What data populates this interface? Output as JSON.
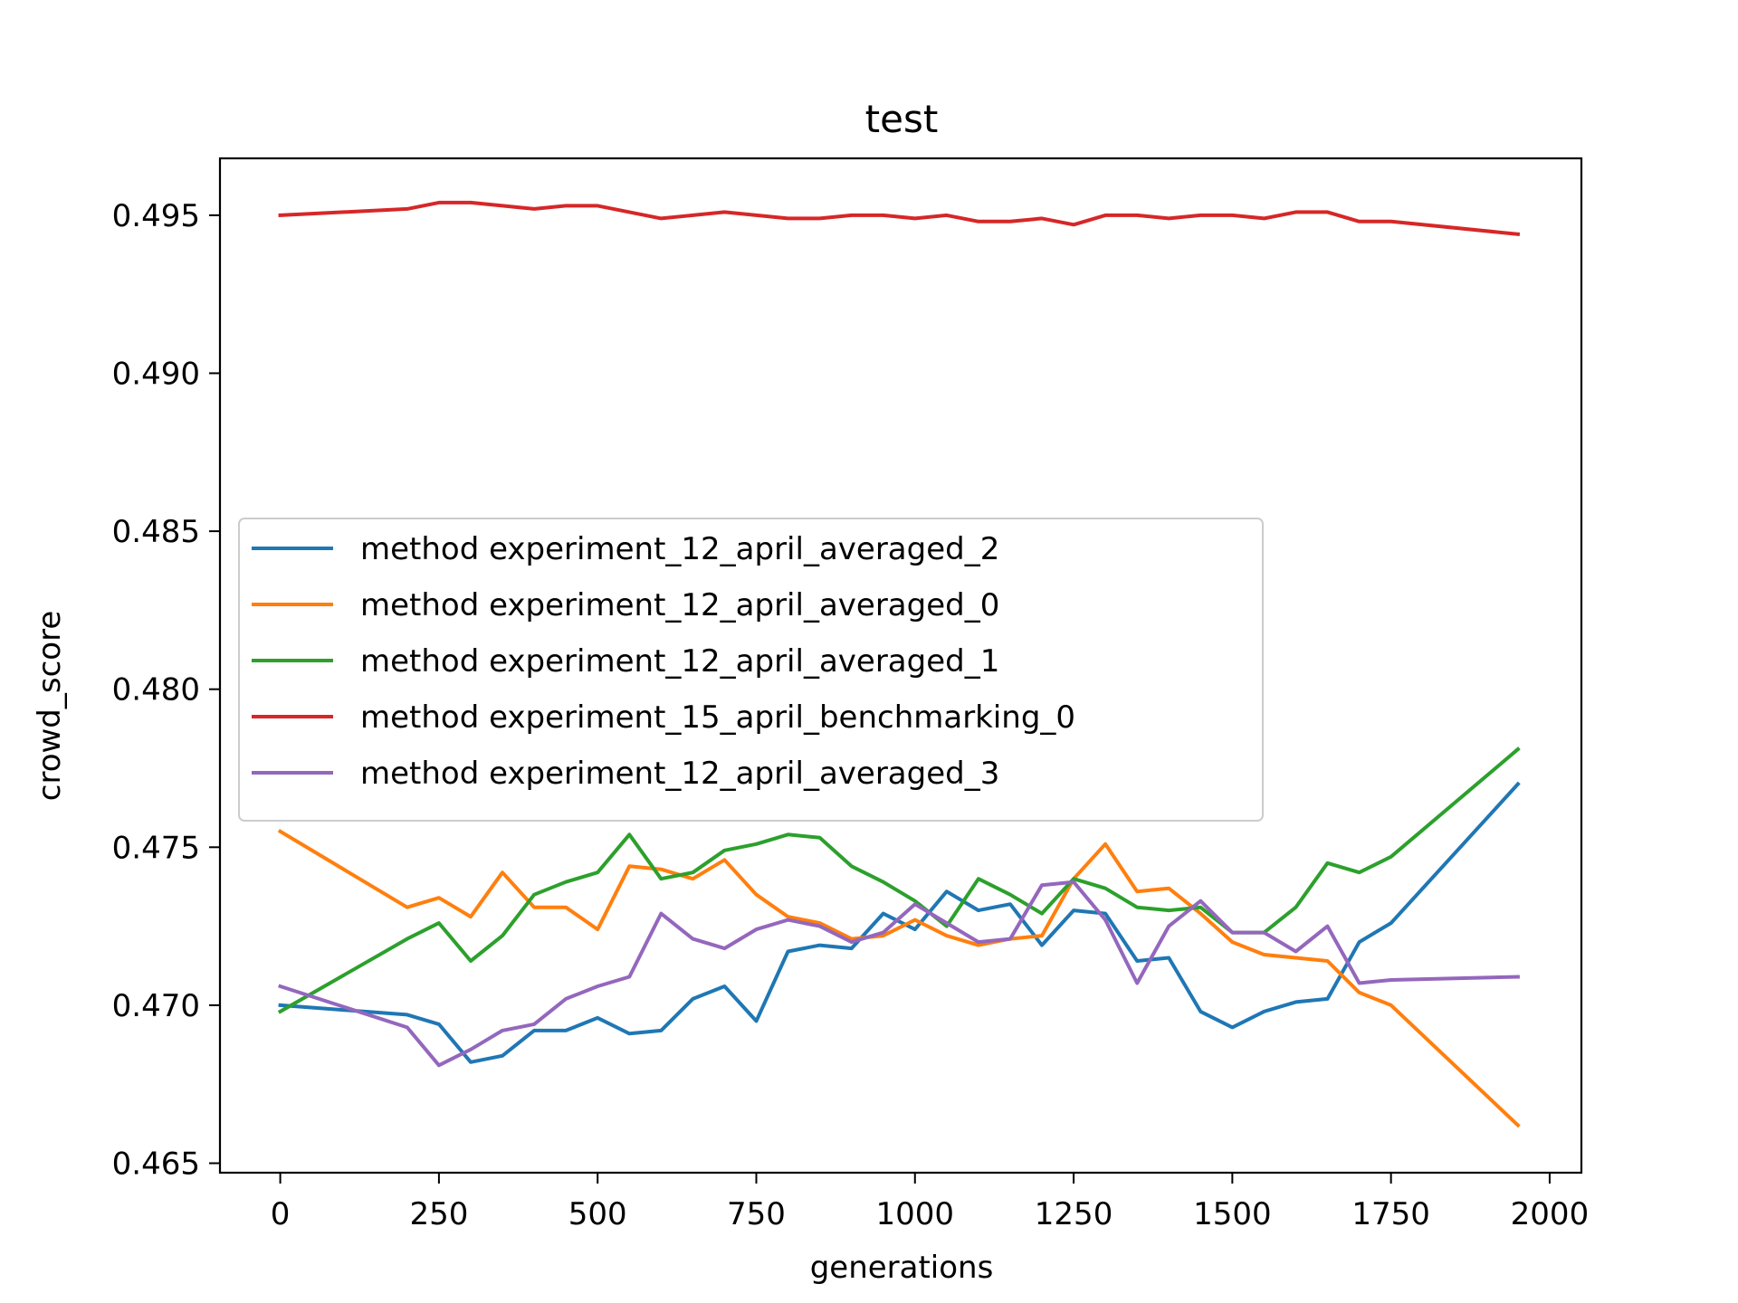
{
  "chart_data": {
    "type": "line",
    "title": "test",
    "xlabel": "generations",
    "ylabel": "crowd_score",
    "xlim": [
      -95,
      2050
    ],
    "ylim": [
      0.4647,
      0.4968
    ],
    "xticks": [
      0,
      250,
      500,
      750,
      1000,
      1250,
      1500,
      1750,
      2000
    ],
    "xtick_labels": [
      "0",
      "250",
      "500",
      "750",
      "1000",
      "1250",
      "1500",
      "1750",
      "2000"
    ],
    "yticks": [
      0.465,
      0.47,
      0.475,
      0.48,
      0.485,
      0.49,
      0.495
    ],
    "ytick_labels": [
      "0.465",
      "0.470",
      "0.475",
      "0.480",
      "0.485",
      "0.490",
      "0.495"
    ],
    "grid": false,
    "legend_position": "center-left",
    "series": [
      {
        "name": "method experiment_12_april_averaged_2",
        "color": "#1f77b4",
        "x": [
          0,
          200,
          250,
          300,
          350,
          400,
          450,
          500,
          550,
          600,
          650,
          700,
          750,
          800,
          850,
          900,
          950,
          1000,
          1050,
          1100,
          1150,
          1200,
          1250,
          1300,
          1350,
          1400,
          1450,
          1500,
          1550,
          1600,
          1650,
          1700,
          1750,
          1950
        ],
        "y": [
          0.47,
          0.4697,
          0.4694,
          0.4682,
          0.4684,
          0.4692,
          0.4692,
          0.4696,
          0.4691,
          0.4692,
          0.4702,
          0.4706,
          0.4695,
          0.4717,
          0.4719,
          0.4718,
          0.4729,
          0.4724,
          0.4736,
          0.473,
          0.4732,
          0.4719,
          0.473,
          0.4729,
          0.4714,
          0.4715,
          0.4698,
          0.4693,
          0.4698,
          0.4701,
          0.4702,
          0.472,
          0.4726,
          0.477
        ]
      },
      {
        "name": "method experiment_12_april_averaged_0",
        "color": "#ff7f0e",
        "x": [
          0,
          200,
          250,
          300,
          350,
          400,
          450,
          500,
          550,
          600,
          650,
          700,
          750,
          800,
          850,
          900,
          950,
          1000,
          1050,
          1100,
          1150,
          1200,
          1250,
          1300,
          1350,
          1400,
          1450,
          1500,
          1550,
          1600,
          1650,
          1700,
          1750,
          1950
        ],
        "y": [
          0.4755,
          0.4731,
          0.4734,
          0.4728,
          0.4742,
          0.4731,
          0.4731,
          0.4724,
          0.4744,
          0.4743,
          0.474,
          0.4746,
          0.4735,
          0.4728,
          0.4726,
          0.4721,
          0.4722,
          0.4727,
          0.4722,
          0.4719,
          0.4721,
          0.4722,
          0.474,
          0.4751,
          0.4736,
          0.4737,
          0.4729,
          0.472,
          0.4716,
          0.4715,
          0.4714,
          0.4704,
          0.47,
          0.4662
        ]
      },
      {
        "name": "method experiment_12_april_averaged_1",
        "color": "#2ca02c",
        "x": [
          0,
          200,
          250,
          300,
          350,
          400,
          450,
          500,
          550,
          600,
          650,
          700,
          750,
          800,
          850,
          900,
          950,
          1000,
          1050,
          1100,
          1150,
          1200,
          1250,
          1300,
          1350,
          1400,
          1450,
          1500,
          1550,
          1600,
          1650,
          1700,
          1750,
          1950
        ],
        "y": [
          0.4698,
          0.4721,
          0.4726,
          0.4714,
          0.4722,
          0.4735,
          0.4739,
          0.4742,
          0.4754,
          0.474,
          0.4742,
          0.4749,
          0.4751,
          0.4754,
          0.4753,
          0.4744,
          0.4739,
          0.4733,
          0.4725,
          0.474,
          0.4735,
          0.4729,
          0.474,
          0.4737,
          0.4731,
          0.473,
          0.4731,
          0.4723,
          0.4723,
          0.4731,
          0.4745,
          0.4742,
          0.4747,
          0.4781
        ]
      },
      {
        "name": "method experiment_15_april_benchmarking_0",
        "color": "#d62728",
        "x": [
          0,
          200,
          250,
          300,
          350,
          400,
          450,
          500,
          550,
          600,
          650,
          700,
          750,
          800,
          850,
          900,
          950,
          1000,
          1050,
          1100,
          1150,
          1200,
          1250,
          1300,
          1350,
          1400,
          1450,
          1500,
          1550,
          1600,
          1650,
          1700,
          1750,
          1950
        ],
        "y": [
          0.495,
          0.4952,
          0.4954,
          0.4954,
          0.4953,
          0.4952,
          0.4953,
          0.4953,
          0.4951,
          0.4949,
          0.495,
          0.4951,
          0.495,
          0.4949,
          0.4949,
          0.495,
          0.495,
          0.4949,
          0.495,
          0.4948,
          0.4948,
          0.4949,
          0.4947,
          0.495,
          0.495,
          0.4949,
          0.495,
          0.495,
          0.4949,
          0.4951,
          0.4951,
          0.4948,
          0.4948,
          0.4944
        ]
      },
      {
        "name": "method experiment_12_april_averaged_3",
        "color": "#9467bd",
        "x": [
          0,
          200,
          250,
          300,
          350,
          400,
          450,
          500,
          550,
          600,
          650,
          700,
          750,
          800,
          850,
          900,
          950,
          1000,
          1050,
          1100,
          1150,
          1200,
          1250,
          1300,
          1350,
          1400,
          1450,
          1500,
          1550,
          1600,
          1650,
          1700,
          1750,
          1950
        ],
        "y": [
          0.4706,
          0.4693,
          0.4681,
          0.4686,
          0.4692,
          0.4694,
          0.4702,
          0.4706,
          0.4709,
          0.4729,
          0.4721,
          0.4718,
          0.4724,
          0.4727,
          0.4725,
          0.472,
          0.4723,
          0.4732,
          0.4726,
          0.472,
          0.4721,
          0.4738,
          0.4739,
          0.4727,
          0.4707,
          0.4725,
          0.4733,
          0.4723,
          0.4723,
          0.4717,
          0.4725,
          0.4707,
          0.4708,
          0.4709
        ]
      }
    ]
  }
}
